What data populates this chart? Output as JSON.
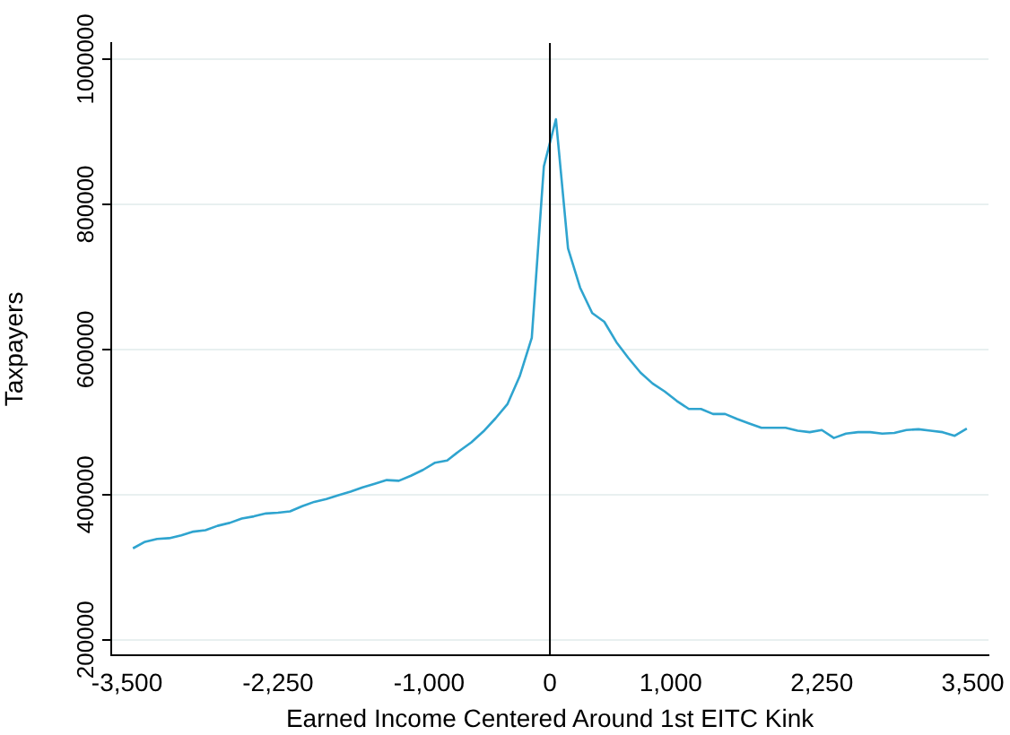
{
  "chart_data": {
    "type": "line",
    "xlabel": "Earned Income Centered Around 1st EITC Kink",
    "ylabel": "Taxpayers",
    "x": [
      -3450,
      -3350,
      -3250,
      -3150,
      -3050,
      -2950,
      -2850,
      -2750,
      -2650,
      -2550,
      -2450,
      -2350,
      -2250,
      -2150,
      -2050,
      -1950,
      -1850,
      -1750,
      -1650,
      -1550,
      -1450,
      -1350,
      -1250,
      -1150,
      -1050,
      -950,
      -850,
      -750,
      -650,
      -550,
      -450,
      -350,
      -250,
      -150,
      -50,
      50,
      150,
      250,
      350,
      450,
      550,
      650,
      750,
      850,
      950,
      1050,
      1150,
      1250,
      1350,
      1450,
      1550,
      1650,
      1750,
      1850,
      1950,
      2050,
      2150,
      2250,
      2350,
      2450,
      2550,
      2650,
      2750,
      2850,
      2950,
      3050,
      3150,
      3250,
      3350,
      3450
    ],
    "series": [
      {
        "color": "#2fa4cf",
        "values": [
          326000,
          335000,
          339000,
          340000,
          344000,
          349000,
          351000,
          357000,
          361000,
          367000,
          370000,
          374000,
          375000,
          377000,
          384000,
          390000,
          394000,
          399000,
          404000,
          410000,
          415000,
          420000,
          419000,
          426000,
          434000,
          444000,
          447000,
          460000,
          472000,
          487000,
          505000,
          525000,
          563000,
          616000,
          852000,
          917000,
          739000,
          685000,
          650000,
          638000,
          610000,
          588000,
          568000,
          553000,
          542000,
          529000,
          518000,
          518000,
          511000,
          511000,
          504000,
          498000,
          492000,
          492000,
          492000,
          488000,
          486000,
          489000,
          478000,
          484000,
          486000,
          486000,
          484000,
          485000,
          489000,
          490000,
          488000,
          486000,
          481000,
          491000
        ]
      }
    ],
    "xlim": [
      -3630,
      3630
    ],
    "xticks": [
      {
        "value": -3500,
        "label": "-3,500"
      },
      {
        "value": -2250,
        "label": "-2,250"
      },
      {
        "value": -1000,
        "label": "-1,000"
      },
      0,
      {
        "value": 1000,
        "label": "1,000"
      },
      {
        "value": 2250,
        "label": "2,250"
      },
      {
        "value": 3500,
        "label": "3,500"
      }
    ],
    "ylim": [
      179000,
      1022000
    ],
    "yticks": [
      200000,
      400000,
      600000,
      800000,
      1000000
    ],
    "grid": "y",
    "marker": "none",
    "line_style": "solid",
    "legend": false,
    "ref_lines": [
      {
        "axis": "x",
        "value": 0,
        "color": "#000000"
      }
    ]
  }
}
